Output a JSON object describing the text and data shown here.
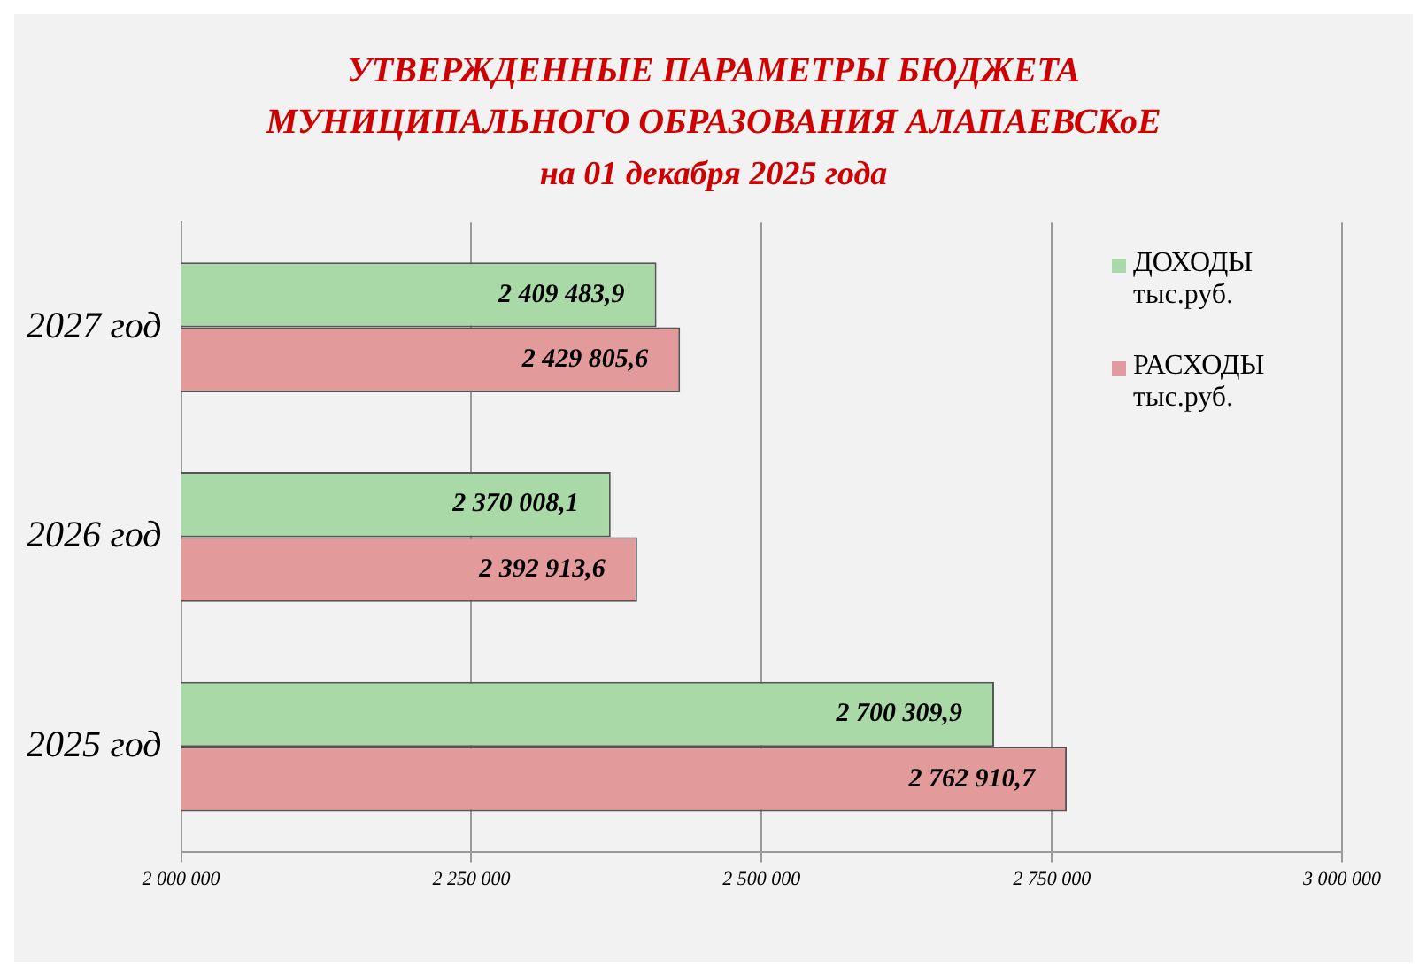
{
  "chart_data": {
    "type": "bar",
    "orientation": "horizontal",
    "title": "УТВЕРЖДЕННЫЕ  ПАРАМЕТРЫ БЮДЖЕТА МУНИЦИПАЛЬНОГО  ОБРАЗОВАНИЯ  АЛАПАЕВСКоЕ",
    "subtitle": "на 01 декабря 2025 года",
    "categories": [
      "2027 год",
      "2026 год",
      "2025 год"
    ],
    "series": [
      {
        "name": "ДОХОДЫ тыс.руб.",
        "color": "#a9d9a6",
        "values": [
          2409483.9,
          2370008.1,
          2700309.9
        ],
        "value_labels": [
          "2 409 483,9",
          "2 370 008,1",
          "2 700 309,9"
        ]
      },
      {
        "name": "РАСХОДЫ тыс.руб.",
        "color": "#e39a9a",
        "values": [
          2429805.6,
          2392913.6,
          2762910.7
        ],
        "value_labels": [
          "2 429 805,6",
          "2 392 913,6",
          "2 762 910,7"
        ]
      }
    ],
    "xlim": [
      2000000,
      3000000
    ],
    "xticks": [
      {
        "value": 2000000,
        "label": "2 000 000"
      },
      {
        "value": 2250000,
        "label": "2 250 000"
      },
      {
        "value": 2500000,
        "label": "2 500 000"
      },
      {
        "value": 2750000,
        "label": "2 750 000"
      },
      {
        "value": 3000000,
        "label": "3 000 000"
      }
    ],
    "grid": "x",
    "legend": "right"
  }
}
